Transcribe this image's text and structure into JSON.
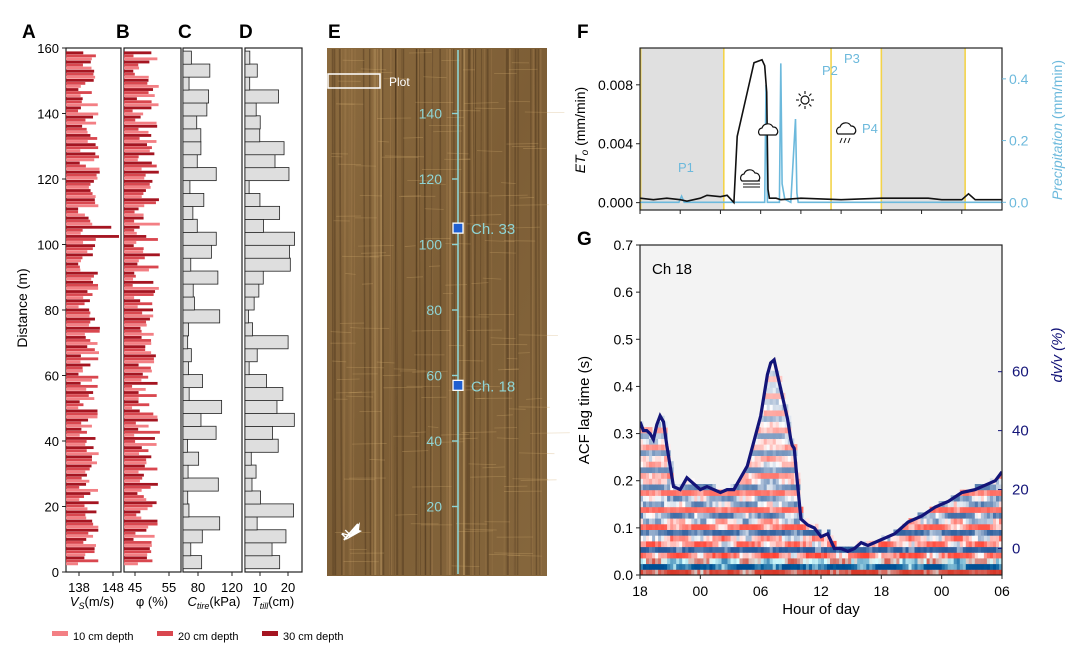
{
  "figure": {
    "panel_labels": [
      "A",
      "B",
      "C",
      "D",
      "E",
      "F",
      "G"
    ],
    "legend": [
      {
        "label": "10 cm depth",
        "color": "#f37f84"
      },
      {
        "label": "20 cm depth",
        "color": "#d9474f"
      },
      {
        "label": "30 cm depth",
        "color": "#a51521"
      }
    ],
    "profile": {
      "ylabel": "Distance (m)",
      "yticks": [
        0,
        20,
        40,
        60,
        80,
        100,
        120,
        140,
        160
      ],
      "panels": [
        {
          "id": "A",
          "xlabel": "V",
          "xlabel_sub": "S",
          "xlabel_unit": "(m/s)",
          "xticks": [
            "138",
            "148"
          ]
        },
        {
          "id": "B",
          "xlabel": "φ (%)",
          "xticks": [
            "45",
            "55"
          ]
        },
        {
          "id": "C",
          "xlabel": "C",
          "xlabel_sub": "tire",
          "xlabel_unit": "(kPa)",
          "xticks": [
            "80",
            "120"
          ]
        },
        {
          "id": "D",
          "xlabel": "T",
          "xlabel_sub": "till",
          "xlabel_unit": "(cm)",
          "xticks": [
            "10",
            "20"
          ]
        }
      ]
    },
    "photo": {
      "plot_label": "Plot",
      "distance_ticks": [
        "20",
        "40",
        "60",
        "80",
        "100",
        "120",
        "140"
      ],
      "channels": [
        {
          "label": "Ch. 33",
          "distance": 105
        },
        {
          "label": "Ch. 18",
          "distance": 57
        }
      ],
      "north": "N"
    },
    "colors": {
      "cyan": "#8fd4d4",
      "sky": "#6cb9dc",
      "navy": "#131478",
      "shade": "#e0e0e0",
      "yellow": "#f3d34a",
      "chan": "#1f5fd0"
    }
  },
  "chart_data": [
    {
      "type": "line",
      "panel": "F",
      "ylabel_left": "ET",
      "ylabel_left_sub": "o",
      "ylabel_left_unit": "(mm/min)",
      "ylabel_right": "Precipitation",
      "ylabel_right_unit": "(mm/min)",
      "ylim_left": [
        -0.0005,
        0.0105
      ],
      "ylim_right": [
        -0.025,
        0.5
      ],
      "yticks_left": [
        "0.000",
        "0.004",
        "0.008"
      ],
      "yticks_right": [
        "0.0",
        "0.2",
        "0.4"
      ],
      "x_hours": [
        0,
        54
      ],
      "annotations": [
        "P1",
        "P2",
        "P3",
        "P4"
      ],
      "series": [
        {
          "name": "ET0",
          "x": [
            0,
            2,
            4,
            6,
            7,
            8,
            9,
            10,
            12,
            13,
            14,
            14.5,
            17,
            18.2,
            18.6,
            18.9,
            19.1,
            19.3,
            20.3,
            21,
            24,
            30,
            36,
            43,
            45,
            48,
            49,
            50,
            54
          ],
          "values": [
            0.0003,
            0.0002,
            0.0003,
            0.0002,
            0.0001,
            0.0002,
            0.0003,
            0.0005,
            0.0004,
            0.0005,
            0.0,
            0.0045,
            0.0095,
            0.0097,
            0.0093,
            0.0075,
            0.0009,
            0.0003,
            0.0003,
            0.0002,
            0.0003,
            0.0002,
            0.0003,
            0.0003,
            0.0002,
            0.0002,
            0.0006,
            0.0002,
            0.0002
          ]
        },
        {
          "name": "Precipitation",
          "x": [
            0,
            5.8,
            6.2,
            6.6,
            7,
            18.6,
            18.8,
            19.0,
            19.4,
            20.8,
            21.0,
            21.2,
            21.6,
            22.5,
            23.2,
            23.4,
            23.6,
            24.5,
            25,
            54
          ],
          "values": [
            0,
            0,
            0.02,
            0,
            0,
            0,
            0.38,
            0,
            0,
            0,
            0.45,
            0.06,
            0.01,
            0,
            0.27,
            0.03,
            0,
            0,
            0,
            0
          ]
        }
      ],
      "night_shading": [
        [
          0,
          12.5
        ],
        [
          36,
          48.5
        ]
      ],
      "marker_lines": [
        0.1,
        12.5,
        28.5,
        36,
        48.5
      ]
    },
    {
      "type": "heatmap",
      "panel": "G",
      "title": "Ch 18",
      "xlabel": "Hour of day",
      "ylabel": "ACF lag time (s)",
      "ylabel_right": "dv/v (%)",
      "xticks": [
        "18",
        "00",
        "06",
        "12",
        "18",
        "00",
        "06"
      ],
      "yticks": [
        "0.0",
        "0.1",
        "0.2",
        "0.3",
        "0.4",
        "0.5",
        "0.6",
        "0.7"
      ],
      "yticks_right": [
        "0",
        "20",
        "40",
        "60"
      ],
      "ylim": [
        0,
        0.7
      ],
      "ylim_right": [
        -9,
        103
      ],
      "series": [
        {
          "name": "dv/v",
          "x": [
            0,
            0.5,
            1,
            1.5,
            2,
            2.5,
            3,
            3.5,
            4,
            5,
            6,
            7,
            8,
            9,
            10,
            11,
            12,
            13,
            14,
            16,
            18,
            19,
            19.5,
            20,
            21,
            22,
            22.5,
            22.7,
            23,
            23.5,
            24,
            25,
            26,
            27,
            28,
            29,
            30,
            31,
            32,
            33,
            34,
            36,
            38,
            40,
            42,
            44,
            46,
            48,
            50,
            52,
            53,
            54
          ],
          "values": [
            43,
            40,
            40,
            39,
            37,
            42,
            45,
            43,
            35,
            21,
            20,
            24,
            22,
            20,
            21,
            20,
            19,
            20,
            20,
            28,
            45,
            59,
            63,
            64,
            54,
            44,
            37,
            35,
            34,
            22,
            10,
            8,
            7,
            4,
            5,
            0,
            0,
            -1,
            0,
            2,
            1,
            3,
            5,
            9,
            11,
            14,
            16,
            19,
            20,
            22,
            23,
            26
          ]
        }
      ]
    }
  ]
}
